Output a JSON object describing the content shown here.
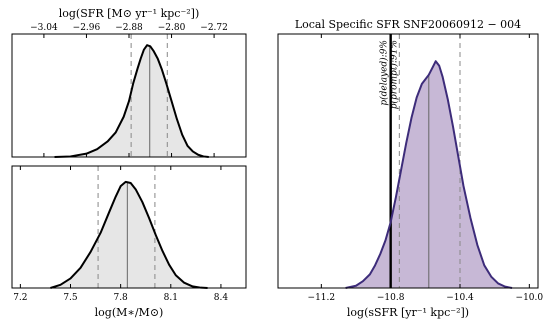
{
  "chart_data": [
    {
      "type": "area",
      "panel": "top-left",
      "xlabel": "log(SFR [M⊙ yr⁻¹ kpc⁻²])",
      "xaxis_position": "top",
      "xlim": [
        -3.1,
        -2.66
      ],
      "xticks": [
        -3.04,
        -2.96,
        -2.88,
        -2.8,
        -2.72
      ],
      "xticklabels": [
        "−3.04",
        "−2.96",
        "−2.88",
        "−2.80",
        "−2.72"
      ],
      "ylim": [
        0,
        1.1
      ],
      "fill_color": "#e6e6e6",
      "line_color": "#000000",
      "median": -2.841,
      "interval": [
        -2.876,
        -2.808
      ],
      "x": [
        -3.02,
        -2.99,
        -2.96,
        -2.94,
        -2.92,
        -2.905,
        -2.89,
        -2.88,
        -2.872,
        -2.864,
        -2.858,
        -2.852,
        -2.846,
        -2.84,
        -2.834,
        -2.826,
        -2.818,
        -2.81,
        -2.8,
        -2.79,
        -2.78,
        -2.77,
        -2.76,
        -2.75,
        -2.74,
        -2.73
      ],
      "y": [
        0.0,
        0.005,
        0.03,
        0.07,
        0.14,
        0.22,
        0.36,
        0.5,
        0.66,
        0.79,
        0.88,
        0.96,
        1.0,
        0.99,
        0.95,
        0.88,
        0.78,
        0.66,
        0.5,
        0.34,
        0.2,
        0.1,
        0.05,
        0.02,
        0.005,
        0.0
      ]
    },
    {
      "type": "area",
      "panel": "bottom-left",
      "xlabel": "log(M∗/M⊙)",
      "xlim": [
        7.15,
        8.55
      ],
      "xticks": [
        7.2,
        7.5,
        7.8,
        8.1,
        8.4
      ],
      "xticklabels": [
        "7.2",
        "7.5",
        "7.8",
        "8.1",
        "8.4"
      ],
      "ylim": [
        0,
        1.15
      ],
      "fill_color": "#e6e6e6",
      "line_color": "#000000",
      "median": 7.84,
      "interval": [
        7.665,
        8.005
      ],
      "x": [
        7.38,
        7.44,
        7.5,
        7.56,
        7.62,
        7.68,
        7.73,
        7.77,
        7.8,
        7.83,
        7.86,
        7.89,
        7.93,
        7.97,
        8.01,
        8.05,
        8.09,
        8.13,
        8.18,
        8.23,
        8.28,
        8.32
      ],
      "y": [
        0.0,
        0.03,
        0.09,
        0.19,
        0.34,
        0.52,
        0.71,
        0.86,
        0.96,
        1.0,
        0.99,
        0.93,
        0.81,
        0.66,
        0.5,
        0.35,
        0.22,
        0.12,
        0.05,
        0.015,
        0.003,
        0.0
      ]
    },
    {
      "type": "area",
      "panel": "right",
      "title": "Local Specific SFR SNF20060912 − 004",
      "xlabel": "log(sSFR [yr⁻¹ kpc⁻²])",
      "xlim": [
        -11.45,
        -9.95
      ],
      "xticks": [
        -11.2,
        -10.8,
        -10.4,
        -10.0
      ],
      "xticklabels": [
        "−11.2",
        "−10.8",
        "−10.4",
        "−10.0"
      ],
      "ylim": [
        0,
        1.12
      ],
      "fill_color": "#c7b8d6",
      "line_color": "#3d2c7a",
      "median": -10.58,
      "interval": [
        -10.75,
        -10.4
      ],
      "threshold": -10.8,
      "annotations": [
        "p(delayed):9%",
        "p(prompt):91%"
      ],
      "x": [
        -11.06,
        -11.0,
        -10.96,
        -10.92,
        -10.89,
        -10.86,
        -10.83,
        -10.8,
        -10.77,
        -10.74,
        -10.71,
        -10.68,
        -10.65,
        -10.62,
        -10.6,
        -10.58,
        -10.56,
        -10.54,
        -10.52,
        -10.5,
        -10.47,
        -10.44,
        -10.41,
        -10.38,
        -10.34,
        -10.3,
        -10.26,
        -10.22,
        -10.18,
        -10.14,
        -10.1
      ],
      "y": [
        0.0,
        0.01,
        0.03,
        0.06,
        0.1,
        0.15,
        0.21,
        0.29,
        0.4,
        0.52,
        0.64,
        0.75,
        0.84,
        0.9,
        0.92,
        0.94,
        0.97,
        1.0,
        0.98,
        0.93,
        0.83,
        0.71,
        0.58,
        0.45,
        0.31,
        0.19,
        0.1,
        0.05,
        0.02,
        0.006,
        0.0
      ]
    }
  ]
}
